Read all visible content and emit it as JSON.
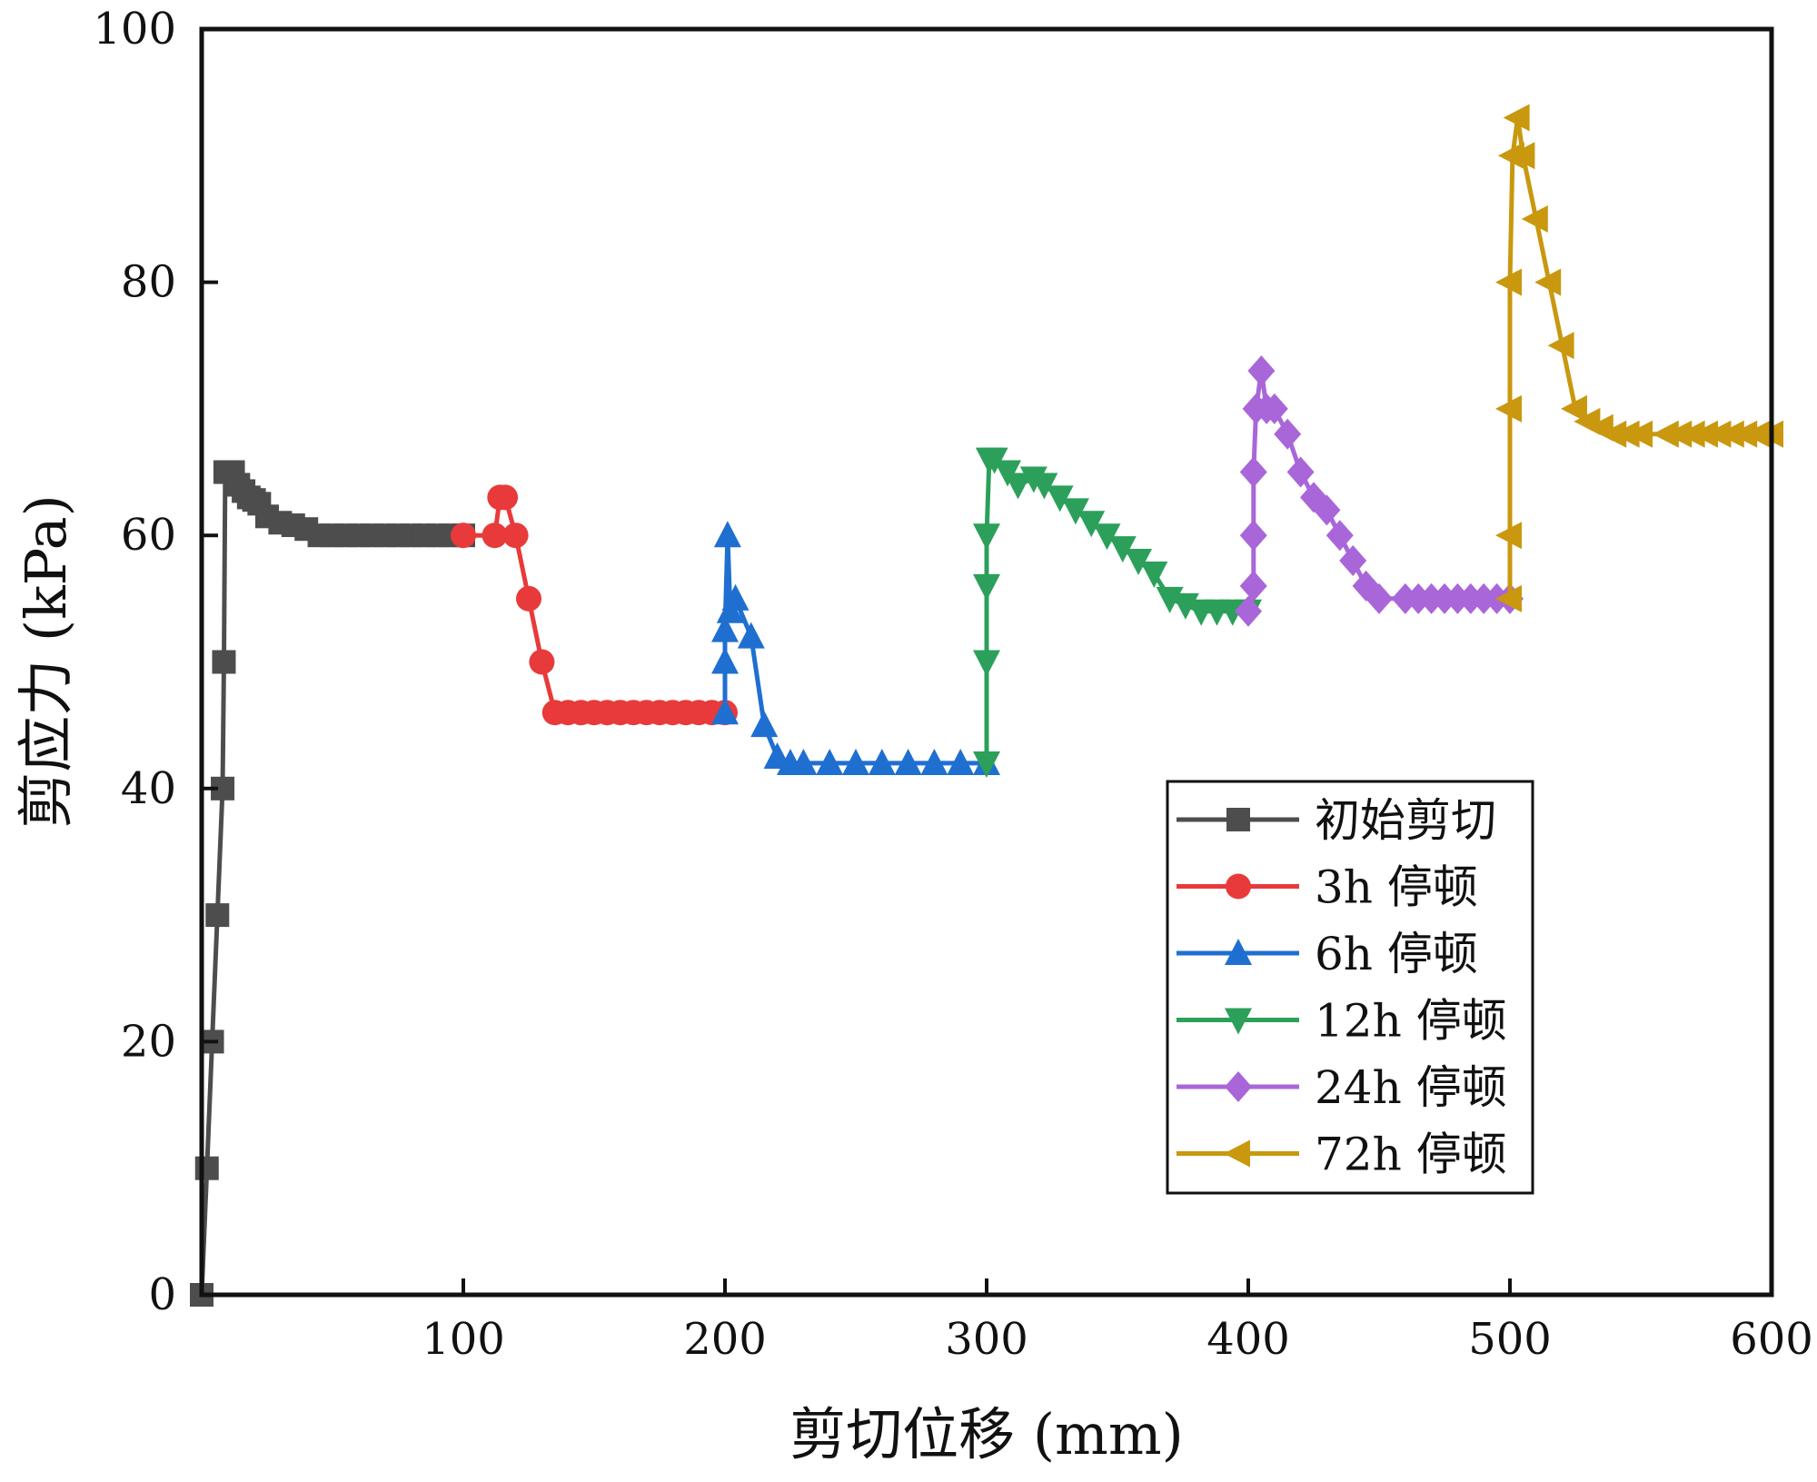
{
  "chart_data": {
    "type": "line",
    "title": "",
    "xlabel": "剪切位移 (mm)",
    "ylabel": "剪应力 (kPa)",
    "xlim": [
      0,
      600
    ],
    "ylim": [
      0,
      100
    ],
    "xticks": [
      100,
      200,
      300,
      400,
      500,
      600
    ],
    "yticks": [
      0,
      20,
      40,
      60,
      80,
      100
    ],
    "grid": false,
    "legend_position": "lower-right",
    "series": [
      {
        "name": "初始剪切",
        "color": "#4d4d4d",
        "marker": "square",
        "x": [
          0,
          2,
          4,
          6,
          8,
          8.5,
          9,
          10,
          12,
          14,
          16,
          18,
          20,
          22,
          25,
          30,
          35,
          40,
          45,
          50,
          55,
          60,
          65,
          70,
          75,
          80,
          85,
          90,
          95,
          100
        ],
        "y": [
          0,
          10,
          20,
          30,
          40,
          50,
          65,
          65,
          65,
          64,
          63.5,
          63,
          62.8,
          62.5,
          61.5,
          61,
          60.8,
          60.5,
          60,
          60,
          60,
          60,
          60,
          60,
          60,
          60,
          60,
          60,
          60,
          60
        ]
      },
      {
        "name": "3h 停顿",
        "color": "#e83a3a",
        "marker": "circle",
        "x": [
          100,
          112,
          114,
          116,
          120,
          125,
          130,
          135,
          140,
          145,
          150,
          155,
          160,
          165,
          170,
          175,
          180,
          185,
          190,
          195,
          200
        ],
        "y": [
          60,
          60,
          63,
          63,
          60,
          55,
          50,
          46,
          46,
          46,
          46,
          46,
          46,
          46,
          46,
          46,
          46,
          46,
          46,
          46,
          46
        ]
      },
      {
        "name": "6h 停顿",
        "color": "#1f6fd1",
        "marker": "triangle-up",
        "x": [
          200,
          200,
          200,
          201,
          202,
          204,
          210,
          215,
          220,
          225,
          230,
          240,
          250,
          260,
          270,
          280,
          290,
          300
        ],
        "y": [
          46,
          50,
          52.5,
          60,
          54,
          55,
          52,
          45,
          42.5,
          42,
          42,
          42,
          42,
          42,
          42,
          42,
          42,
          42
        ]
      },
      {
        "name": "12h 停顿",
        "color": "#2ca05a",
        "marker": "triangle-down",
        "x": [
          300,
          300,
          300,
          300,
          301,
          303,
          308,
          312,
          318,
          322,
          328,
          334,
          340,
          346,
          352,
          358,
          364,
          370,
          376,
          382,
          388,
          394,
          400
        ],
        "y": [
          42,
          50,
          56,
          60,
          66,
          66,
          65,
          64,
          64.5,
          64,
          63,
          62,
          61,
          60,
          59,
          58,
          57,
          55,
          54.5,
          54,
          54,
          54,
          54
        ]
      },
      {
        "name": "24h 停顿",
        "color": "#a966d9",
        "marker": "diamond",
        "x": [
          400,
          402,
          402,
          402,
          403,
          405,
          407,
          410,
          415,
          420,
          425,
          430,
          435,
          440,
          445,
          450,
          460,
          465,
          470,
          475,
          480,
          485,
          490,
          495,
          500
        ],
        "y": [
          54,
          56,
          60,
          65,
          70,
          73,
          70,
          70,
          68,
          65,
          63,
          62,
          60,
          58,
          56,
          55,
          55,
          55,
          55,
          55,
          55,
          55,
          55,
          55,
          55
        ]
      },
      {
        "name": "72h 停顿",
        "color": "#c9980f",
        "marker": "triangle-left",
        "x": [
          500,
          500,
          500,
          500,
          501,
          503,
          505,
          510,
          515,
          520,
          525,
          530,
          535,
          540,
          545,
          550,
          560,
          565,
          570,
          575,
          580,
          585,
          590,
          595,
          600
        ],
        "y": [
          55,
          60,
          70,
          80,
          90,
          93,
          90,
          85,
          80,
          75,
          70,
          69,
          68.5,
          68,
          68,
          68,
          68,
          68,
          68,
          68,
          68,
          68,
          68,
          68,
          68
        ]
      }
    ]
  }
}
